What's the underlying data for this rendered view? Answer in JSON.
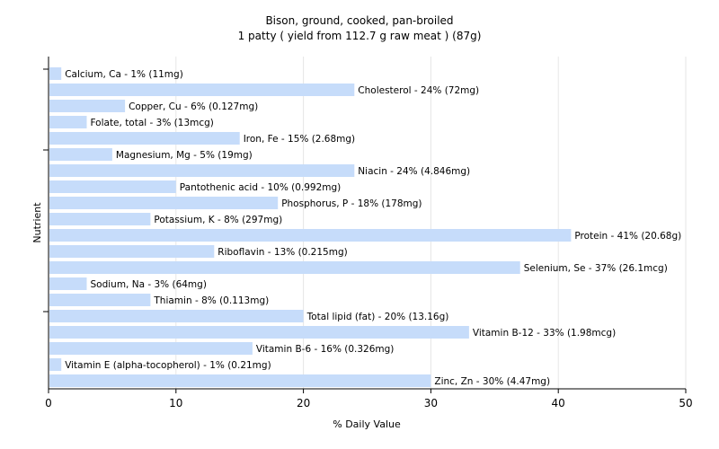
{
  "chart_data": {
    "type": "bar",
    "orientation": "horizontal",
    "title": "Bison, ground, cooked, pan-broiled",
    "subtitle": "1 patty ( yield from 112.7 g raw meat ) (87g)",
    "xlabel": "% Daily Value",
    "ylabel": "Nutrient",
    "xlim": [
      0,
      50
    ],
    "xticks": [
      0,
      10,
      20,
      30,
      40,
      50
    ],
    "grid": true,
    "bar_color": "#c6dcfa",
    "categories": [
      "Calcium, Ca - 1% (11mg)",
      "Cholesterol - 24% (72mg)",
      "Copper, Cu - 6% (0.127mg)",
      "Folate, total - 3% (13mcg)",
      "Iron, Fe - 15% (2.68mg)",
      "Magnesium, Mg - 5% (19mg)",
      "Niacin - 24% (4.846mg)",
      "Pantothenic acid - 10% (0.992mg)",
      "Phosphorus, P - 18% (178mg)",
      "Potassium, K - 8% (297mg)",
      "Protein - 41% (20.68g)",
      "Riboflavin - 13% (0.215mg)",
      "Selenium, Se - 37% (26.1mcg)",
      "Sodium, Na - 3% (64mg)",
      "Thiamin - 8% (0.113mg)",
      "Total lipid (fat) - 20% (13.16g)",
      "Vitamin B-12 - 33% (1.98mcg)",
      "Vitamin B-6 - 16% (0.326mg)",
      "Vitamin E (alpha-tocopherol) - 1% (0.21mg)",
      "Zinc, Zn - 30% (4.47mg)"
    ],
    "values": [
      1,
      24,
      6,
      3,
      15,
      5,
      24,
      10,
      18,
      8,
      41,
      13,
      37,
      3,
      8,
      20,
      33,
      16,
      1,
      30
    ]
  }
}
